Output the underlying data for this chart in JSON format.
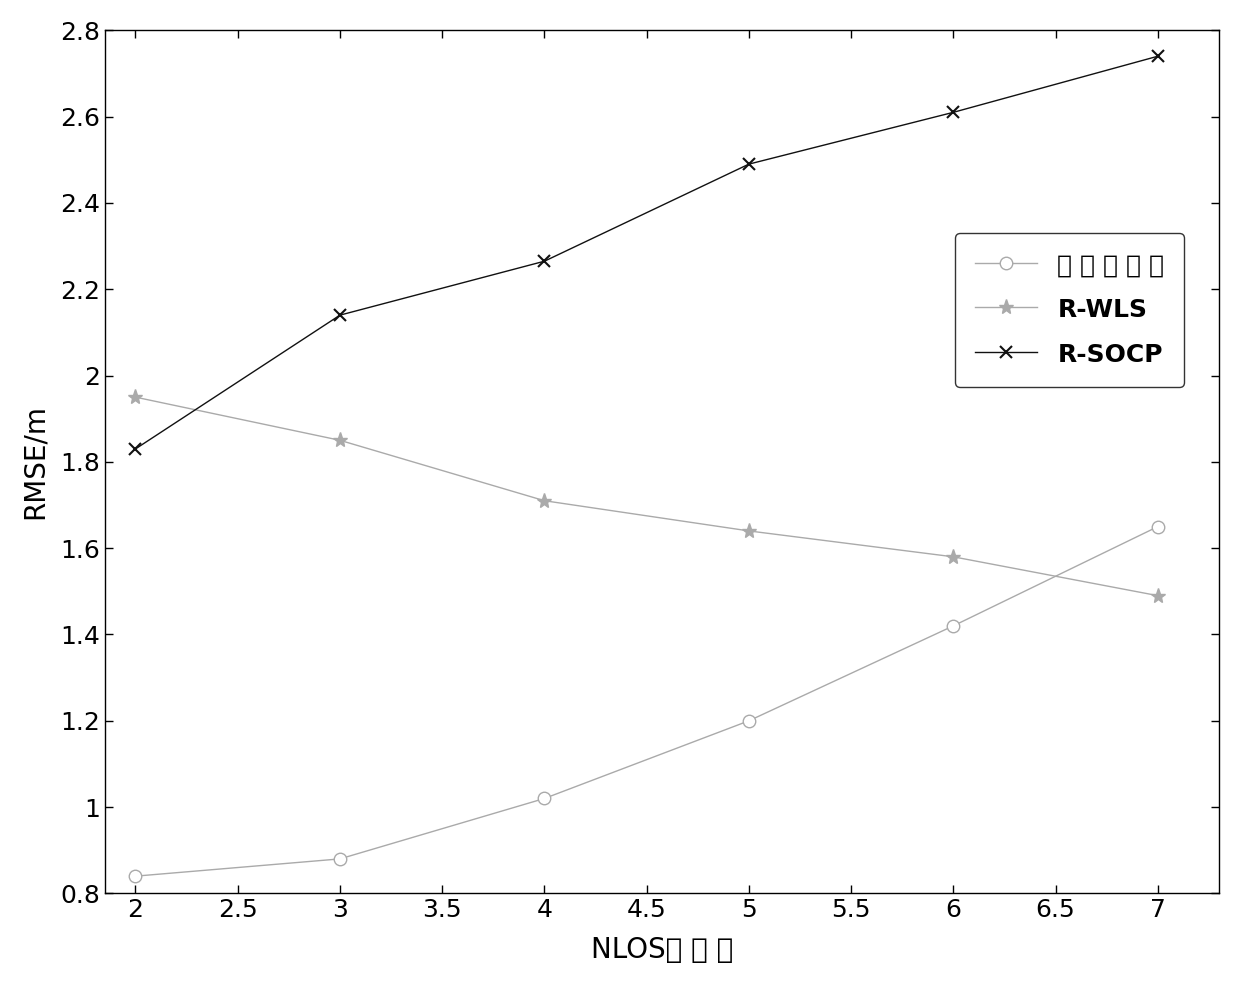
{
  "x": [
    2,
    3,
    4,
    5,
    6,
    7
  ],
  "series": [
    {
      "label": "本 发 明 方 法",
      "y": [
        0.84,
        0.88,
        1.02,
        1.2,
        1.42,
        1.65
      ],
      "marker": "o",
      "color": "#aaaaaa",
      "linewidth": 1.0,
      "markersize": 9,
      "markerfacecolor": "white",
      "markeredgecolor": "#aaaaaa",
      "markeredgewidth": 1.0
    },
    {
      "label": "R-WLS",
      "y": [
        1.95,
        1.85,
        1.71,
        1.64,
        1.58,
        1.49
      ],
      "marker": "*",
      "color": "#aaaaaa",
      "linewidth": 1.0,
      "markersize": 11,
      "markerfacecolor": "#aaaaaa",
      "markeredgecolor": "#aaaaaa",
      "markeredgewidth": 1.0
    },
    {
      "label": "R-SOCP",
      "y": [
        1.83,
        2.14,
        2.265,
        2.49,
        2.61,
        2.74
      ],
      "marker": "x",
      "color": "#111111",
      "linewidth": 1.0,
      "markersize": 9,
      "markerfacecolor": "#111111",
      "markeredgecolor": "#111111",
      "markeredgewidth": 1.5
    }
  ],
  "xlabel": "NLOS链 路 数",
  "ylabel": "RMSE/m",
  "xlim": [
    1.85,
    7.3
  ],
  "ylim": [
    0.8,
    2.8
  ],
  "xticks": [
    2,
    2.5,
    3,
    3.5,
    4,
    4.5,
    5,
    5.5,
    6,
    6.5,
    7
  ],
  "yticks": [
    0.8,
    1.0,
    1.2,
    1.4,
    1.6,
    1.8,
    2.0,
    2.2,
    2.4,
    2.6,
    2.8
  ],
  "background_color": "#ffffff",
  "axis_fontsize": 20,
  "tick_fontsize": 18,
  "legend_fontsize": 18
}
